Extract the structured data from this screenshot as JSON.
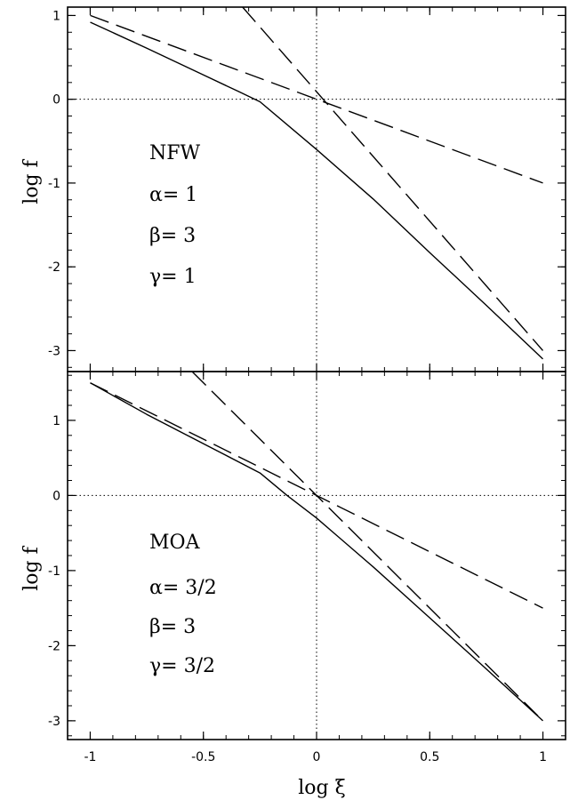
{
  "chart_data": [
    {
      "type": "line",
      "panel": "top",
      "ylabel": "log f",
      "xlim": [
        -1.1,
        1.1
      ],
      "ylim": [
        -3.25,
        1.1
      ],
      "yticks": [
        1,
        0,
        -1,
        -2,
        -3
      ],
      "ytick_labels": [
        "1",
        "0",
        "-1",
        "-2",
        "-3"
      ],
      "grid": false,
      "reference_lines": [
        {
          "orientation": "horizontal",
          "value": 0,
          "style": "dotted"
        },
        {
          "orientation": "vertical",
          "value": 0,
          "style": "dotted"
        }
      ],
      "annotations": {
        "model": "NFW",
        "alpha": "α= 1",
        "beta": "β= 3",
        "gamma": "γ= 1"
      },
      "series": [
        {
          "style": "solid",
          "x": [
            -1,
            -0.75,
            -0.5,
            -0.35,
            -0.25,
            0,
            0.25,
            0.5,
            0.75,
            1
          ],
          "y": [
            0.92,
            0.61,
            0.29,
            0.1,
            -0.03,
            -0.6,
            -1.19,
            -1.83,
            -2.46,
            -3.1
          ]
        },
        {
          "style": "dashed",
          "x": [
            -1,
            1
          ],
          "y": [
            1,
            -1
          ]
        },
        {
          "style": "dashed",
          "x": [
            -0.327,
            1
          ],
          "y": [
            1.1,
            -3
          ]
        }
      ]
    },
    {
      "type": "line",
      "panel": "bottom",
      "ylabel": "log f",
      "xlabel": "log ξ",
      "xlim": [
        -1.1,
        1.1
      ],
      "ylim": [
        -3.25,
        1.65
      ],
      "xticks": [
        -1,
        -0.5,
        0,
        0.5,
        1
      ],
      "xtick_labels": [
        "-1",
        "-0.5",
        "0",
        "0.5",
        "1"
      ],
      "yticks": [
        1,
        0,
        -1,
        -2,
        -3
      ],
      "ytick_labels": [
        "1",
        "0",
        "-1",
        "-2",
        "-3"
      ],
      "grid": false,
      "reference_lines": [
        {
          "orientation": "horizontal",
          "value": 0,
          "style": "dotted"
        },
        {
          "orientation": "vertical",
          "value": 0,
          "style": "dotted"
        }
      ],
      "annotations": {
        "model": "MOA",
        "alpha": "α= 3/2",
        "beta": "β= 3",
        "gamma": "γ= 3/2"
      },
      "series": [
        {
          "style": "solid",
          "x": [
            -1,
            -0.75,
            -0.5,
            -0.25,
            -0.13,
            0,
            0.25,
            0.5,
            0.75,
            1
          ],
          "y": [
            1.5,
            1.08,
            0.69,
            0.3,
            0.0,
            -0.3,
            -0.95,
            -1.63,
            -2.31,
            -3.0
          ]
        },
        {
          "style": "dashed",
          "x": [
            -1,
            1
          ],
          "y": [
            1.5,
            -1.5
          ]
        },
        {
          "style": "dashed",
          "x": [
            -0.55,
            1
          ],
          "y": [
            1.65,
            -3
          ]
        }
      ]
    }
  ]
}
